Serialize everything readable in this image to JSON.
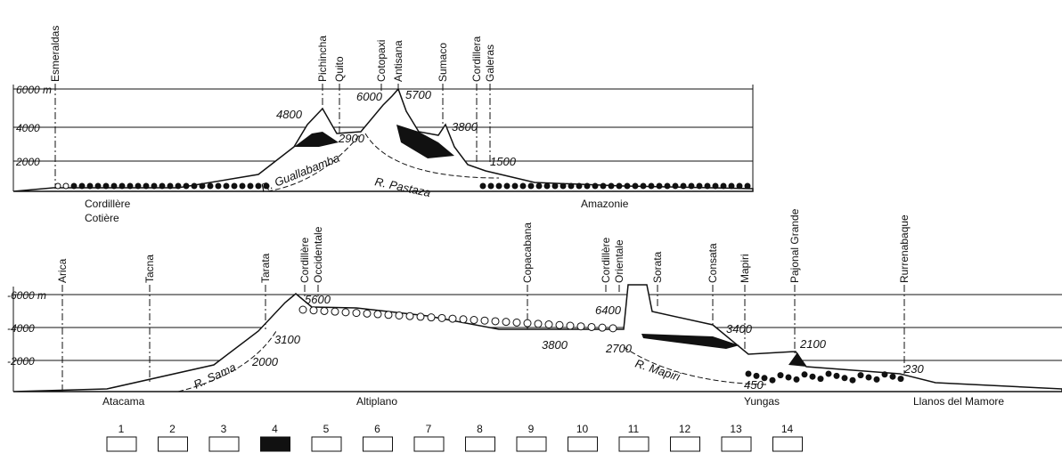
{
  "top_section": {
    "places": [
      "Esmeraldas",
      "Pichincha",
      "Quito",
      "Cotopaxi",
      "Antisana",
      "Sumaco",
      "Cordillera",
      "Galeras"
    ],
    "axis_labels": [
      "6000 m",
      "4000",
      "2000"
    ],
    "elevations": [
      "4800",
      "2900",
      "6000",
      "5700",
      "3800",
      "1500"
    ],
    "rivers": [
      "R. Guallabamba",
      "R. Pastaza"
    ],
    "regions": [
      "Cordillère",
      "Cotière",
      "Amazonie"
    ]
  },
  "bottom_section": {
    "places": [
      "Arica",
      "Tacna",
      "Tarata",
      "Cordillère",
      "Occidentale",
      "Copacabana",
      "Cordillère",
      "Orientale",
      "Sorata",
      "Consata",
      "Mapiri",
      "Pajonal Grande",
      "Rurrenabaque"
    ],
    "axis_labels": [
      "-6000 m",
      "-4000",
      "-2000"
    ],
    "elevations": [
      "5600",
      "3100",
      "2000",
      "3800",
      "6400",
      "2700",
      "3400",
      "2100",
      "450",
      "230"
    ],
    "rivers": [
      "R. Sama",
      "R. Mapiri"
    ],
    "regions": [
      "Atacama",
      "Altiplano",
      "Yungas",
      "Llanos del Mamore"
    ]
  },
  "legend": {
    "items": [
      "1",
      "2",
      "3",
      "4",
      "5",
      "6",
      "7",
      "8",
      "9",
      "10",
      "11",
      "12",
      "13",
      "14"
    ]
  }
}
